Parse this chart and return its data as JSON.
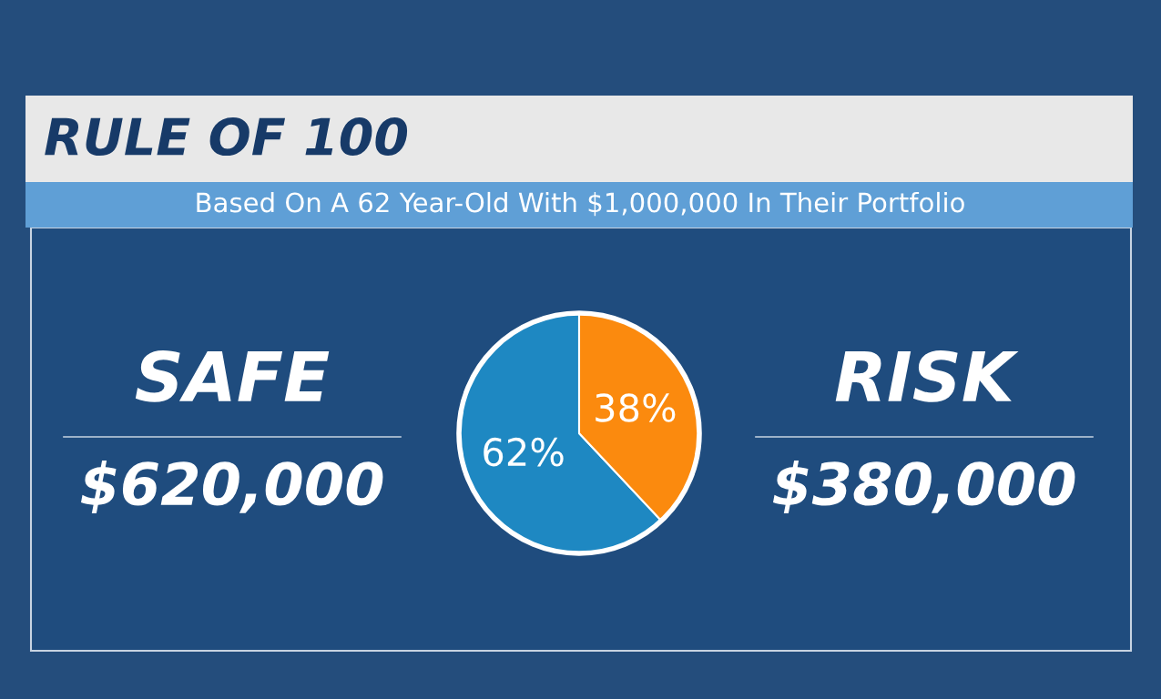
{
  "chart_data": {
    "type": "pie",
    "title": "RULE OF 100",
    "subtitle": "Based On A 62 Year-Old With $1,000,000 In Their Portfolio",
    "categories": [
      "SAFE",
      "RISK"
    ],
    "values": [
      62,
      38
    ],
    "colors": [
      "#1e88c2",
      "#fb8a0e"
    ],
    "value_labels": [
      "62%",
      "38%"
    ],
    "annotations": [
      "$620,000",
      "$380,000"
    ]
  }
}
